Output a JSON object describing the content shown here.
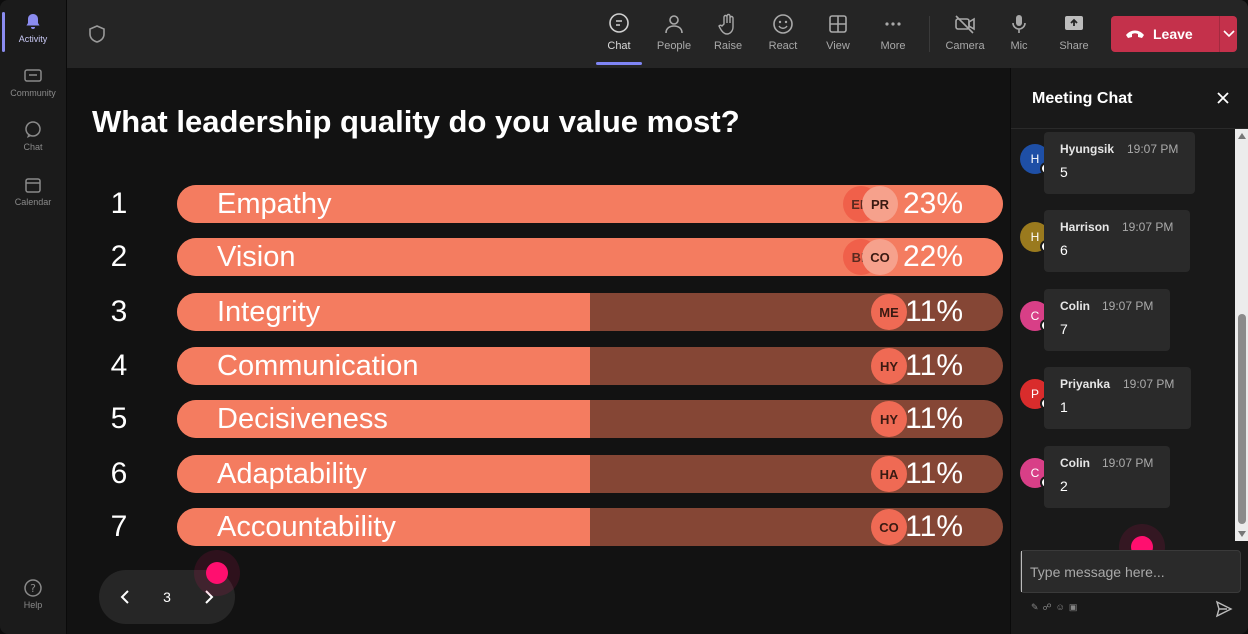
{
  "rail": {
    "items": [
      {
        "label": "Activity",
        "icon": "bell-icon"
      },
      {
        "label": "Community",
        "icon": "community-icon"
      },
      {
        "label": "Chat",
        "icon": "chat-icon"
      },
      {
        "label": "Calendar",
        "icon": "calendar-icon"
      }
    ],
    "help": "Help"
  },
  "toolbar": {
    "buttons": [
      {
        "label": "Chat",
        "icon": "chat-icon"
      },
      {
        "label": "People",
        "icon": "people-icon"
      },
      {
        "label": "Raise",
        "icon": "hand-icon"
      },
      {
        "label": "React",
        "icon": "smiley-icon"
      },
      {
        "label": "View",
        "icon": "grid-icon"
      },
      {
        "label": "More",
        "icon": "more-icon"
      },
      {
        "label": "Camera",
        "icon": "camera-off-icon"
      },
      {
        "label": "Mic",
        "icon": "mic-icon"
      },
      {
        "label": "Share",
        "icon": "share-icon"
      }
    ],
    "leave_label": "Leave",
    "leave_color": "#c4314b"
  },
  "poll": {
    "question": "What leadership quality do you value most?",
    "options": [
      {
        "num": "1",
        "label": "Empathy",
        "pct": "23%",
        "value": 23,
        "avatars": [
          "EM",
          "PR"
        ]
      },
      {
        "num": "2",
        "label": "Vision",
        "pct": "22%",
        "value": 22,
        "avatars": [
          "BR",
          "CO"
        ]
      },
      {
        "num": "3",
        "label": "Integrity",
        "pct": "11%",
        "value": 11,
        "avatars": [
          "ME"
        ]
      },
      {
        "num": "4",
        "label": "Communication",
        "pct": "11%",
        "value": 11,
        "avatars": [
          "HY"
        ]
      },
      {
        "num": "5",
        "label": "Decisiveness",
        "pct": "11%",
        "value": 11,
        "avatars": [
          "HY"
        ]
      },
      {
        "num": "6",
        "label": "Adaptability",
        "pct": "11%",
        "value": 11,
        "avatars": [
          "HA"
        ]
      },
      {
        "num": "7",
        "label": "Accountability",
        "pct": "11%",
        "value": 11,
        "avatars": [
          "CO"
        ]
      }
    ],
    "bar_color": "#f47c60",
    "track_color": "#854635",
    "page": "3"
  },
  "chat": {
    "title": "Meeting Chat",
    "messages": [
      {
        "initial": "H",
        "name": "Hyungsik",
        "time": "19:07 PM",
        "text": "5",
        "color": "#1e4fa6"
      },
      {
        "initial": "H",
        "name": "Harrison",
        "time": "19:07 PM",
        "text": "6",
        "color": "#9a7a1e"
      },
      {
        "initial": "C",
        "name": "Colin",
        "time": "19:07 PM",
        "text": "7",
        "color": "#d83f87"
      },
      {
        "initial": "P",
        "name": "Priyanka",
        "time": "19:07 PM",
        "text": "1",
        "color": "#d92c2c"
      },
      {
        "initial": "C",
        "name": "Colin",
        "time": "19:07 PM",
        "text": "2",
        "color": "#d83f87"
      }
    ],
    "input_placeholder": "Type message here..."
  }
}
